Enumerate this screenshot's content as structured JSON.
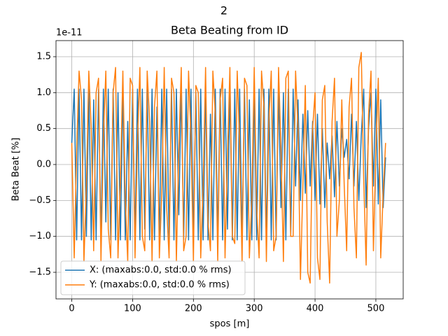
{
  "chart_data": {
    "type": "line",
    "suptitle": "2",
    "title": "Beta Beating from ID",
    "xlabel": "spos [m]",
    "ylabel": "Beta Beat [%]",
    "y_offset_text": "1e-11",
    "x": [
      0,
      4,
      8,
      12,
      16,
      20,
      24,
      28,
      32,
      36,
      40,
      44,
      48,
      52,
      56,
      60,
      64,
      68,
      72,
      76,
      80,
      84,
      88,
      92,
      96,
      100,
      104,
      108,
      112,
      116,
      120,
      124,
      128,
      132,
      136,
      140,
      144,
      148,
      152,
      156,
      160,
      164,
      168,
      172,
      176,
      180,
      184,
      188,
      192,
      196,
      200,
      204,
      208,
      212,
      216,
      220,
      224,
      228,
      232,
      236,
      240,
      244,
      248,
      252,
      256,
      260,
      264,
      268,
      272,
      276,
      280,
      284,
      288,
      292,
      296,
      300,
      304,
      308,
      312,
      316,
      320,
      324,
      328,
      332,
      336,
      340,
      344,
      348,
      352,
      356,
      360,
      364,
      368,
      372,
      376,
      380,
      384,
      388,
      392,
      396,
      400,
      404,
      408,
      412,
      416,
      420,
      424,
      428,
      432,
      436,
      440,
      444,
      448,
      452,
      456,
      460,
      464,
      468,
      472,
      476,
      480,
      484,
      488,
      492,
      496,
      500,
      504,
      508,
      512,
      516
    ],
    "series": [
      {
        "name": "X: (maxabs:0.0, std:0.0 % rms)",
        "color": "#1f77b4",
        "values": [
          0.3,
          1.05,
          -1.05,
          1.05,
          -1.05,
          1.05,
          -1.0,
          1.05,
          -1.05,
          0.9,
          -1.05,
          1.05,
          -1.05,
          1.05,
          -0.8,
          1.05,
          -1.05,
          1.05,
          -1.05,
          1.0,
          -1.05,
          1.05,
          -1.05,
          0.6,
          -1.05,
          1.05,
          -1.05,
          1.05,
          -1.05,
          1.05,
          -0.9,
          1.05,
          -1.05,
          1.05,
          -1.05,
          0.8,
          -1.05,
          1.05,
          -1.05,
          1.05,
          -1.05,
          1.05,
          -1.05,
          1.05,
          -0.7,
          1.05,
          -1.05,
          1.05,
          -1.05,
          1.05,
          -1.05,
          1.0,
          -1.05,
          1.05,
          -1.05,
          1.05,
          -1.05,
          0.7,
          -1.05,
          1.05,
          -1.05,
          1.05,
          -1.05,
          1.05,
          -0.9,
          1.05,
          -1.05,
          1.05,
          -1.05,
          1.05,
          -1.05,
          1.05,
          -1.05,
          0.9,
          -1.05,
          1.05,
          -1.05,
          1.05,
          -1.05,
          1.05,
          -1.05,
          1.05,
          -1.05,
          1.05,
          -1.05,
          1.05,
          -0.6,
          1.0,
          -1.05,
          1.05,
          -1.0,
          1.05,
          -0.3,
          0.9,
          -0.5,
          0.7,
          -0.4,
          0.75,
          -0.3,
          0.6,
          -0.5,
          0.7,
          -0.55,
          0.5,
          -0.6,
          0.3,
          -0.2,
          0.4,
          -0.45,
          0.6,
          -0.3,
          0.5,
          0.1,
          0.35,
          -0.2,
          0.7,
          -0.3,
          0.6,
          -0.5,
          0.4,
          1.05,
          -0.6,
          0.5,
          1.0,
          -0.3,
          1.05,
          -0.55,
          0.9,
          -0.6,
          0.1
        ]
      },
      {
        "name": "Y: (maxabs:0.0, std:0.0 % rms)",
        "color": "#ff7f0e",
        "values": [
          0.3,
          -1.3,
          0.2,
          1.3,
          0.9,
          -1.35,
          -0.3,
          1.3,
          0.5,
          -1.2,
          1.0,
          1.2,
          -1.35,
          0.4,
          1.3,
          -0.9,
          -1.3,
          1.0,
          1.35,
          -1.3,
          -0.2,
          1.3,
          -0.5,
          -1.35,
          1.2,
          1.1,
          -1.3,
          0.3,
          1.35,
          -1.0,
          -1.2,
          1.3,
          0.6,
          -1.35,
          0.8,
          1.3,
          -1.3,
          -0.4,
          1.35,
          -0.6,
          -1.3,
          1.2,
          1.0,
          -1.35,
          0.2,
          1.35,
          -1.2,
          -1.0,
          1.3,
          0.4,
          -1.35,
          1.1,
          1.0,
          -1.3,
          -0.3,
          1.35,
          -0.8,
          -1.2,
          1.3,
          0.7,
          -1.35,
          0.9,
          1.2,
          -1.3,
          0.1,
          1.35,
          -1.0,
          -1.1,
          1.3,
          0.3,
          -1.35,
          1.2,
          1.1,
          -1.3,
          -0.5,
          1.35,
          -0.6,
          -1.3,
          1.3,
          0.8,
          -1.35,
          0.6,
          1.3,
          -1.2,
          -1.0,
          1.35,
          0.2,
          -1.35,
          1.2,
          1.3,
          -1.0,
          -1.0,
          1.3,
          0.5,
          -1.6,
          -0.3,
          1.1,
          -1.5,
          -1.65,
          0.5,
          1.0,
          -1.3,
          -1.6,
          0.9,
          1.1,
          -0.8,
          -1.65,
          0.6,
          1.2,
          -1.0,
          -0.5,
          0.9,
          -0.3,
          -1.2,
          0.8,
          1.2,
          -0.6,
          -1.3,
          1.35,
          1.56,
          -0.2,
          -1.4,
          0.7,
          1.3,
          -1.2,
          0.2,
          1.2,
          -1.3,
          -0.4,
          0.3
        ]
      }
    ],
    "xlim": [
      -25.95,
      544.95
    ],
    "ylim": [
      -1.87,
      1.724
    ],
    "xticks": [
      0,
      100,
      200,
      300,
      400,
      500
    ],
    "yticks": [
      {
        "value": -1.5,
        "label": "−1.5"
      },
      {
        "value": -1,
        "label": "−1.0"
      },
      {
        "value": -0.5,
        "label": "−0.5"
      },
      {
        "value": 0,
        "label": "0.0"
      },
      {
        "value": 0.5,
        "label": "0.5"
      },
      {
        "value": 1,
        "label": "1.0"
      },
      {
        "value": 1.5,
        "label": "1.5"
      }
    ],
    "grid": true,
    "legend": "lower left"
  }
}
